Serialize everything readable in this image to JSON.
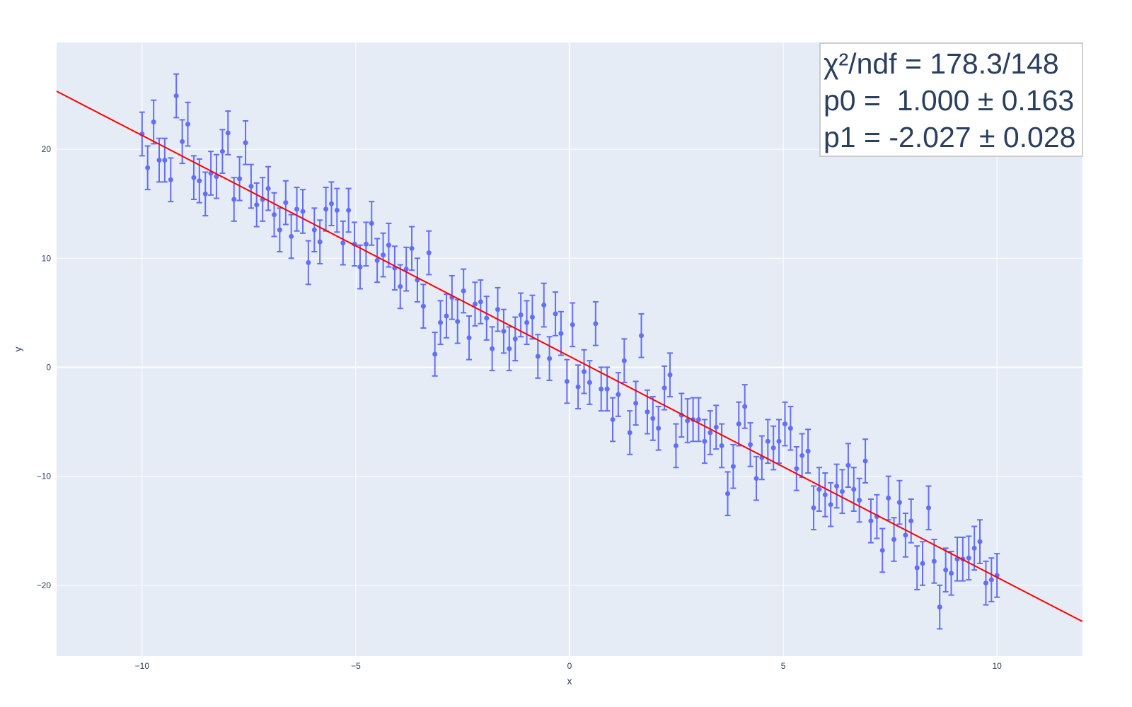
{
  "chart_data": {
    "type": "scatter",
    "x_label": "x",
    "y_label": "y",
    "xlim": [
      -12,
      12
    ],
    "ylim": [
      -26.5,
      29.8
    ],
    "x_ticks": [
      -10,
      -5,
      0,
      5,
      10
    ],
    "y_ticks": [
      -20,
      -10,
      0,
      10,
      20
    ],
    "x_tick_labels": [
      "−10",
      "−5",
      "0",
      "5",
      "10"
    ],
    "y_tick_labels": [
      "−20",
      "−10",
      "0",
      "10",
      "20"
    ],
    "grid": true,
    "colors": {
      "plot_background": "#e5ecf6",
      "grid": "#ffffff",
      "points": "#636efa",
      "fit_line": "#ff0000",
      "text": "#2a3f5f",
      "annotation_border": "#bfbfbf"
    },
    "fit": {
      "p0": 1.0,
      "p1": -2.027
    },
    "annotation": {
      "position": "top-right",
      "lines": [
        "χ²/ndf = 178.3/148",
        "p0 =  1.000 ± 0.163",
        "p1 = -2.027 ± 0.028"
      ]
    },
    "series": [
      {
        "error": 2,
        "points": [
          [
            -10.0,
            21.4
          ],
          [
            -9.87,
            18.3
          ],
          [
            -9.73,
            22.5
          ],
          [
            -9.6,
            19.0
          ],
          [
            -9.47,
            19.0
          ],
          [
            -9.33,
            17.2
          ],
          [
            -9.2,
            24.9
          ],
          [
            -9.06,
            20.7
          ],
          [
            -8.93,
            22.3
          ],
          [
            -8.79,
            17.4
          ],
          [
            -8.66,
            17.1
          ],
          [
            -8.52,
            15.9
          ],
          [
            -8.39,
            17.8
          ],
          [
            -8.26,
            17.5
          ],
          [
            -8.12,
            19.8
          ],
          [
            -7.99,
            21.5
          ],
          [
            -7.85,
            15.4
          ],
          [
            -7.72,
            17.3
          ],
          [
            -7.58,
            20.6
          ],
          [
            -7.45,
            16.6
          ],
          [
            -7.32,
            14.9
          ],
          [
            -7.18,
            15.4
          ],
          [
            -7.05,
            16.4
          ],
          [
            -6.91,
            14.0
          ],
          [
            -6.78,
            12.6
          ],
          [
            -6.64,
            15.1
          ],
          [
            -6.51,
            12.0
          ],
          [
            -6.38,
            14.5
          ],
          [
            -6.24,
            14.3
          ],
          [
            -6.11,
            9.6
          ],
          [
            -5.97,
            12.6
          ],
          [
            -5.84,
            11.5
          ],
          [
            -5.7,
            14.5
          ],
          [
            -5.57,
            15.0
          ],
          [
            -5.44,
            14.4
          ],
          [
            -5.3,
            11.4
          ],
          [
            -5.17,
            14.4
          ],
          [
            -5.03,
            11.3
          ],
          [
            -4.9,
            9.2
          ],
          [
            -4.76,
            11.3
          ],
          [
            -4.63,
            13.2
          ],
          [
            -4.5,
            9.8
          ],
          [
            -4.36,
            10.3
          ],
          [
            -4.23,
            11.2
          ],
          [
            -4.09,
            9.1
          ],
          [
            -3.96,
            7.4
          ],
          [
            -3.82,
            9.0
          ],
          [
            -3.69,
            10.9
          ],
          [
            -3.56,
            8.0
          ],
          [
            -3.42,
            5.6
          ],
          [
            -3.29,
            10.5
          ],
          [
            -3.15,
            1.2
          ],
          [
            -3.02,
            4.1
          ],
          [
            -2.88,
            4.7
          ],
          [
            -2.75,
            6.4
          ],
          [
            -2.62,
            4.2
          ],
          [
            -2.48,
            7.0
          ],
          [
            -2.35,
            2.7
          ],
          [
            -2.21,
            5.8
          ],
          [
            -2.08,
            6.0
          ],
          [
            -1.94,
            4.5
          ],
          [
            -1.81,
            1.7
          ],
          [
            -1.68,
            5.3
          ],
          [
            -1.54,
            3.3
          ],
          [
            -1.41,
            1.7
          ],
          [
            -1.27,
            2.6
          ],
          [
            -1.14,
            4.8
          ],
          [
            -1.0,
            4.1
          ],
          [
            -0.87,
            4.6
          ],
          [
            -0.74,
            1.0
          ],
          [
            -0.6,
            5.7
          ],
          [
            -0.47,
            0.8
          ],
          [
            -0.33,
            4.9
          ],
          [
            -0.2,
            3.1
          ],
          [
            -0.06,
            -1.3
          ],
          [
            0.07,
            3.9
          ],
          [
            0.2,
            -1.8
          ],
          [
            0.34,
            -0.4
          ],
          [
            0.47,
            -1.4
          ],
          [
            0.61,
            4.0
          ],
          [
            0.74,
            -2.0
          ],
          [
            0.88,
            -2.0
          ],
          [
            1.01,
            -4.8
          ],
          [
            1.14,
            -2.5
          ],
          [
            1.28,
            0.6
          ],
          [
            1.41,
            -6.0
          ],
          [
            1.55,
            -3.3
          ],
          [
            1.68,
            2.9
          ],
          [
            1.82,
            -4.1
          ],
          [
            1.95,
            -4.7
          ],
          [
            2.08,
            -5.6
          ],
          [
            2.22,
            -1.9
          ],
          [
            2.35,
            -0.7
          ],
          [
            2.49,
            -7.2
          ],
          [
            2.62,
            -4.4
          ],
          [
            2.76,
            -4.9
          ],
          [
            2.89,
            -4.8
          ],
          [
            3.02,
            -4.8
          ],
          [
            3.16,
            -6.8
          ],
          [
            3.29,
            -6.0
          ],
          [
            3.43,
            -5.5
          ],
          [
            3.56,
            -7.2
          ],
          [
            3.7,
            -11.6
          ],
          [
            3.83,
            -9.1
          ],
          [
            3.96,
            -5.2
          ],
          [
            4.1,
            -3.6
          ],
          [
            4.23,
            -7.1
          ],
          [
            4.37,
            -10.2
          ],
          [
            4.5,
            -8.3
          ],
          [
            4.64,
            -6.8
          ],
          [
            4.77,
            -7.4
          ],
          [
            4.9,
            -6.8
          ],
          [
            5.04,
            -5.2
          ],
          [
            5.17,
            -5.6
          ],
          [
            5.31,
            -9.3
          ],
          [
            5.44,
            -8.1
          ],
          [
            5.58,
            -7.7
          ],
          [
            5.71,
            -12.9
          ],
          [
            5.84,
            -11.2
          ],
          [
            5.98,
            -11.7
          ],
          [
            6.11,
            -12.6
          ],
          [
            6.25,
            -10.9
          ],
          [
            6.38,
            -11.4
          ],
          [
            6.52,
            -9.0
          ],
          [
            6.65,
            -11.2
          ],
          [
            6.78,
            -12.2
          ],
          [
            6.92,
            -8.6
          ],
          [
            7.05,
            -14.1
          ],
          [
            7.19,
            -13.7
          ],
          [
            7.32,
            -16.8
          ],
          [
            7.46,
            -12.0
          ],
          [
            7.59,
            -15.8
          ],
          [
            7.72,
            -12.4
          ],
          [
            7.86,
            -15.4
          ],
          [
            7.99,
            -14.1
          ],
          [
            8.13,
            -18.4
          ],
          [
            8.26,
            -18.0
          ],
          [
            8.4,
            -12.9
          ],
          [
            8.53,
            -17.8
          ],
          [
            8.66,
            -22.0
          ],
          [
            8.8,
            -18.6
          ],
          [
            8.93,
            -18.9
          ],
          [
            9.07,
            -17.6
          ],
          [
            9.2,
            -17.6
          ],
          [
            9.34,
            -17.5
          ],
          [
            9.47,
            -16.6
          ],
          [
            9.6,
            -16.0
          ],
          [
            9.74,
            -19.8
          ],
          [
            9.87,
            -19.5
          ],
          [
            10.0,
            -19.1
          ]
        ]
      }
    ]
  }
}
